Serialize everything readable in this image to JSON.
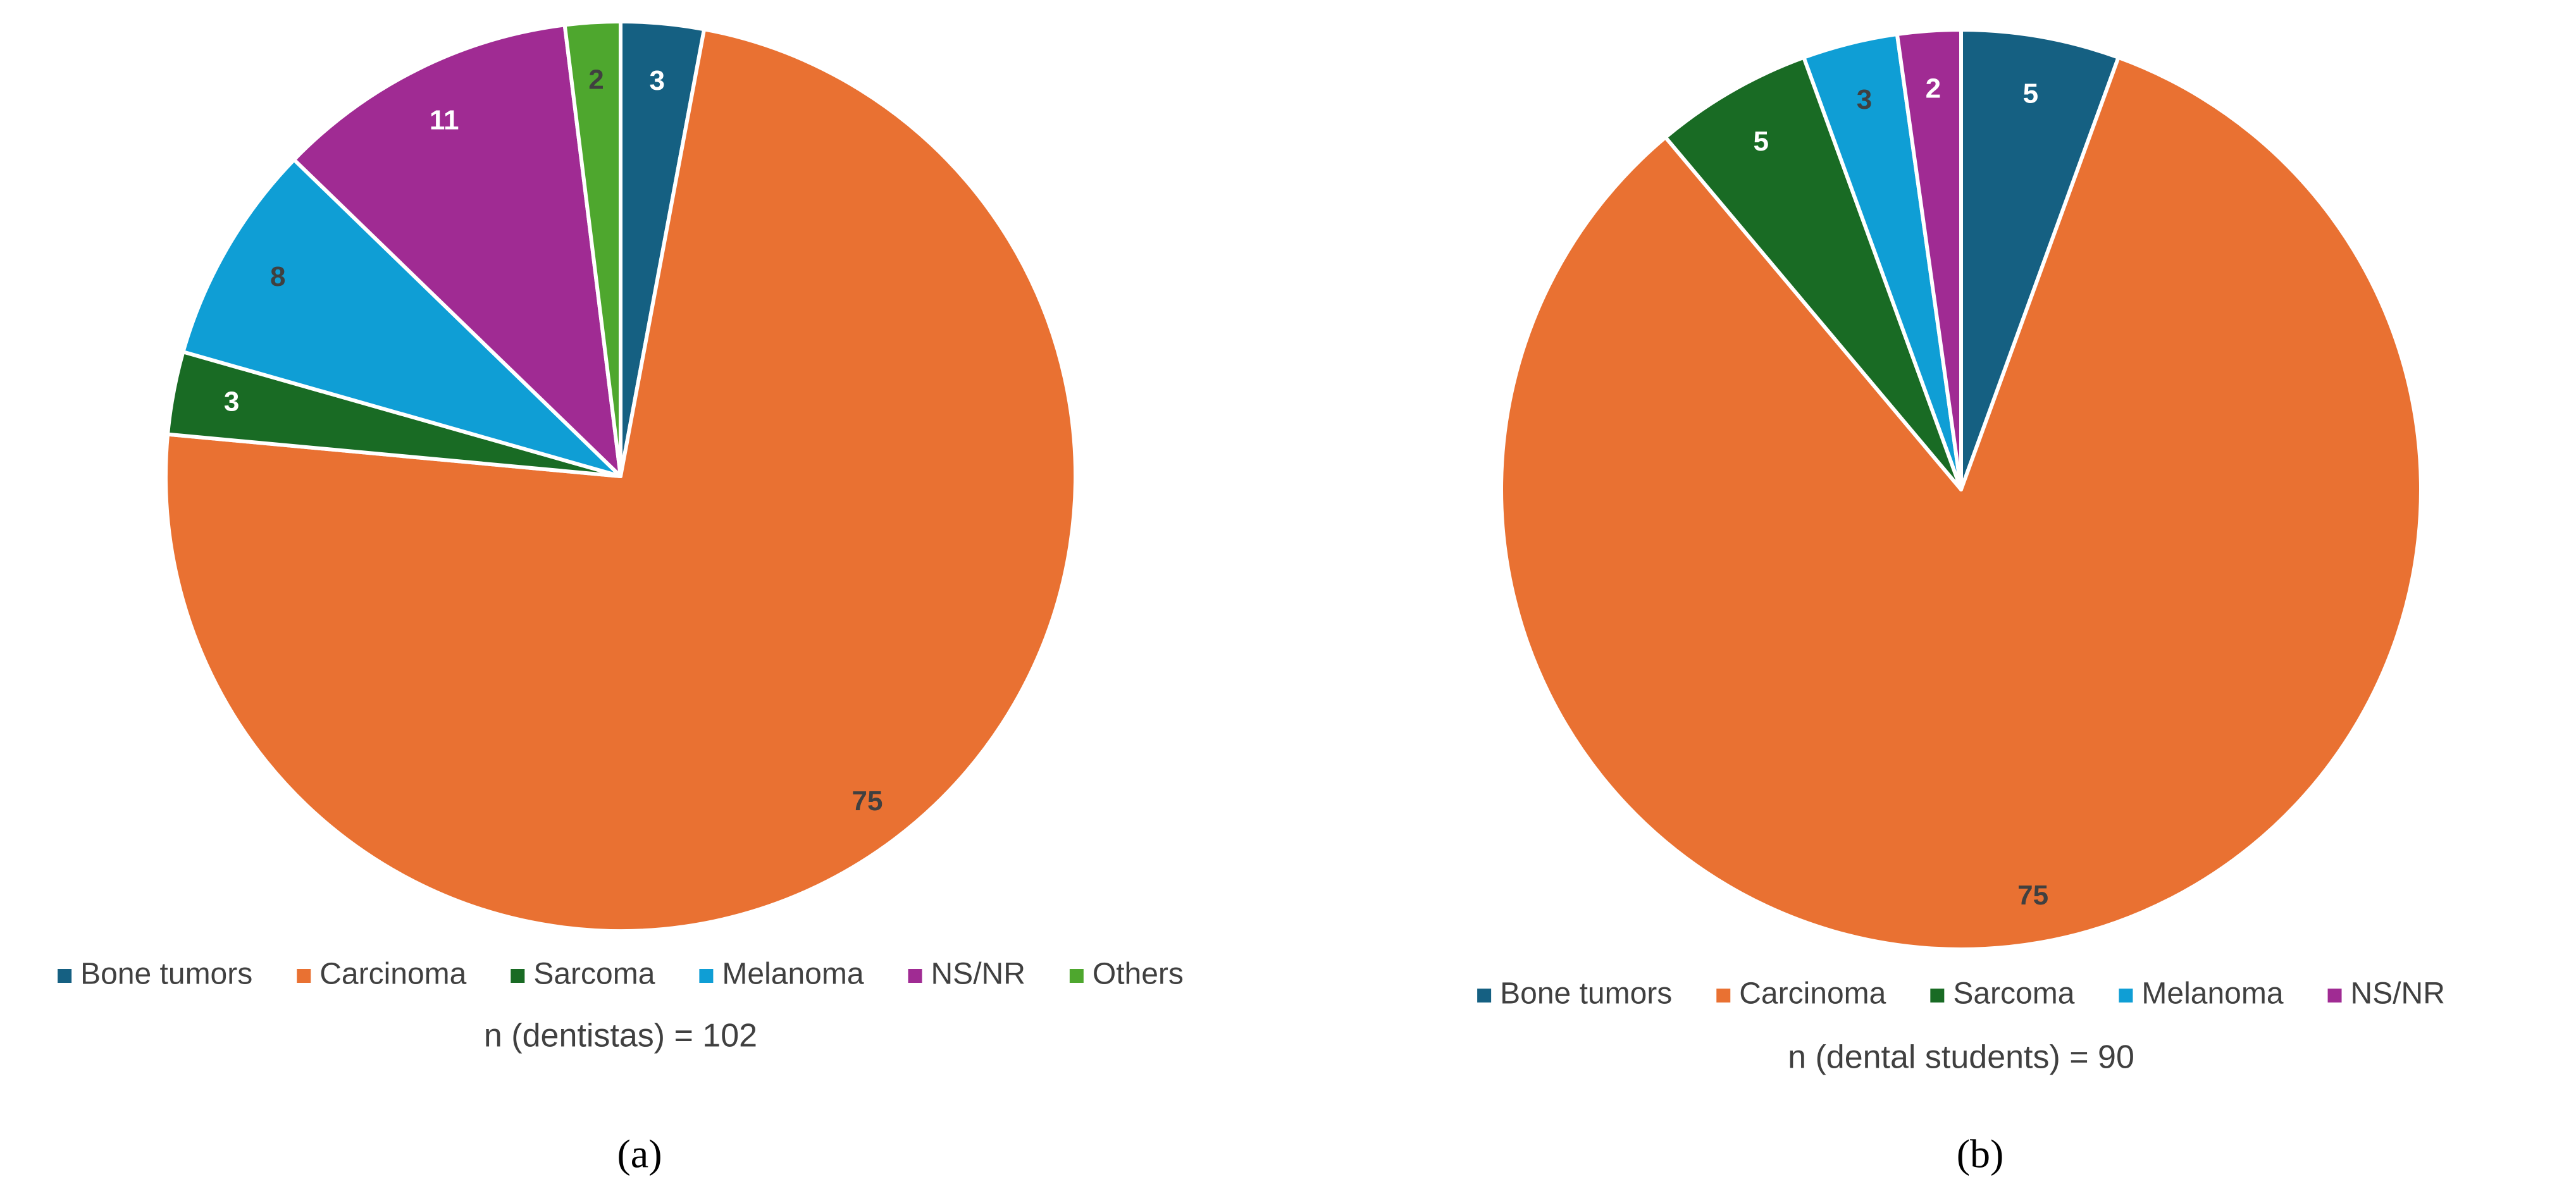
{
  "chart_data": [
    {
      "type": "pie",
      "categories": [
        "Bone tumors",
        "Carcinoma",
        "Sarcoma",
        "Melanoma",
        "NS/NR",
        "Others"
      ],
      "values": [
        3,
        75,
        3,
        8,
        11,
        2
      ],
      "colors": [
        "#156082",
        "#e97132",
        "#196b24",
        "#0f9ed5",
        "#a02b93",
        "#4ea72e"
      ],
      "legend": "bottom",
      "subtitle": "n (dentistas) = 102",
      "caption": "(a)"
    },
    {
      "type": "pie",
      "categories": [
        "Bone tumors",
        "Carcinoma",
        "Sarcoma",
        "Melanoma",
        "NS/NR"
      ],
      "values": [
        5,
        75,
        5,
        3,
        2
      ],
      "colors": [
        "#156082",
        "#e97132",
        "#196b24",
        "#0f9ed5",
        "#a02b93"
      ],
      "legend": "bottom",
      "subtitle": "n (dental students) = 90",
      "caption": "(b)"
    }
  ]
}
